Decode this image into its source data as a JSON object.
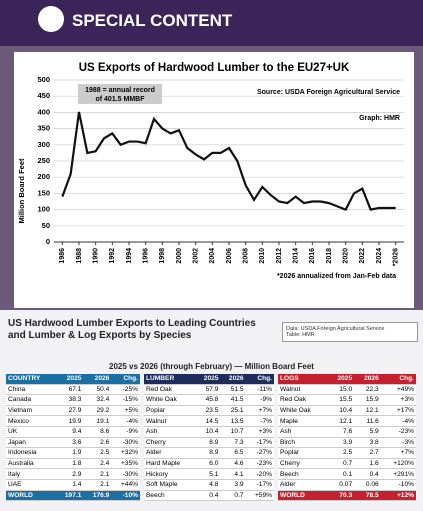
{
  "header": {
    "title": "SPECIAL CONTENT"
  },
  "chart_data": {
    "type": "line",
    "title": "US Exports of Hardwood Lumber to the EU27+UK",
    "annotation": "1988 = annual record\nof 401.5 MMBF",
    "source": "Source: USDA Foreign Agricultural Service",
    "credit": "Graph: HMR",
    "footnote": "*2026 annualized from Jan-Feb data",
    "y_label": "Million Board Feet",
    "x": [
      1986,
      1987,
      1988,
      1989,
      1990,
      1991,
      1992,
      1993,
      1994,
      1995,
      1996,
      1997,
      1998,
      1999,
      2000,
      2001,
      2002,
      2003,
      2004,
      2005,
      2006,
      2007,
      2008,
      2009,
      2010,
      2011,
      2012,
      2013,
      2014,
      2015,
      2016,
      2017,
      2018,
      2019,
      2020,
      2021,
      2022,
      2023,
      2024,
      2025,
      2026
    ],
    "series": [
      {
        "color": "#111111",
        "values": [
          140,
          210,
          401.5,
          275,
          280,
          320,
          335,
          300,
          310,
          310,
          305,
          380,
          350,
          335,
          345,
          290,
          270,
          255,
          275,
          275,
          290,
          250,
          175,
          130,
          170,
          145,
          125,
          120,
          140,
          120,
          125,
          125,
          120,
          110,
          100,
          150,
          165,
          100,
          105,
          105,
          105
        ]
      }
    ],
    "xlim": [
      1985,
      2027
    ],
    "xticks": [
      1986,
      1988,
      1990,
      1992,
      1994,
      1996,
      1998,
      2000,
      2002,
      2004,
      2006,
      2008,
      2010,
      2012,
      2014,
      2016,
      2018,
      2020,
      2022,
      2024,
      {
        "value": 2026,
        "label": "*2026"
      }
    ],
    "ylim": [
      0,
      500
    ],
    "yticks": [
      0,
      50,
      100,
      150,
      200,
      250,
      300,
      350,
      400,
      450,
      500
    ],
    "grid": true
  },
  "section": {
    "title": "US Hardwood Lumber Exports to Leading Countries\nand Lumber & Log Exports by Species",
    "note": "Data: USDA Foreign Agricultural Service\nTable: HMR",
    "subtitle": "2025 vs 2026 (through February) — Million Board Feet"
  },
  "tables": [
    {
      "color": "#1b6fa3",
      "header": [
        "COUNTRY",
        "2025",
        "2026",
        "Chg."
      ],
      "rows": [
        [
          "China",
          "67.1",
          "50.4",
          "-25%"
        ],
        [
          "Canada",
          "38.3",
          "32.4",
          "-15%"
        ],
        [
          "Vietnam",
          "27.9",
          "29.2",
          "+5%"
        ],
        [
          "Mexico",
          "19.9",
          "19.1",
          "-4%"
        ],
        [
          "UK",
          "9.4",
          "8.6",
          "-9%"
        ],
        [
          "Japan",
          "3.6",
          "2.6",
          "-30%"
        ],
        [
          "Indonesia",
          "1.9",
          "2.5",
          "+32%"
        ],
        [
          "Australia",
          "1.8",
          "2.4",
          "+35%"
        ],
        [
          "Italy",
          "2.9",
          "2.1",
          "-30%"
        ],
        [
          "UAE",
          "1.4",
          "2.1",
          "+44%"
        ],
        [
          "WORLD",
          "197.1",
          "176.9",
          "-10%"
        ]
      ]
    },
    {
      "color": "#1f2d5c",
      "header": [
        "LUMBER",
        "2025",
        "2026",
        "Chg."
      ],
      "rows": [
        [
          "Red Oak",
          "57.9",
          "51.5",
          "-11%"
        ],
        [
          "White Oak",
          "45.8",
          "41.5",
          "-9%"
        ],
        [
          "Poplar",
          "23.5",
          "25.1",
          "+7%"
        ],
        [
          "Walnut",
          "14.5",
          "13.5",
          "-7%"
        ],
        [
          "Ash",
          "10.4",
          "10.7",
          "+3%"
        ],
        [
          "Cherry",
          "8.9",
          "7.3",
          "-17%"
        ],
        [
          "Alder",
          "8.9",
          "6.5",
          "-27%"
        ],
        [
          "Hard Maple",
          "6.0",
          "4.6",
          "-23%"
        ],
        [
          "Hickory",
          "5.1",
          "4.1",
          "-20%"
        ],
        [
          "Soft Maple",
          "4.8",
          "3.9",
          "-17%"
        ],
        [
          "Beech",
          "0.4",
          "0.7",
          "+59%"
        ]
      ]
    },
    {
      "color": "#c62030",
      "header": [
        "LOGS",
        "2025",
        "2026",
        "Chg."
      ],
      "rows": [
        [
          "Walnut",
          "15.0",
          "22.3",
          "+49%"
        ],
        [
          "Red Oak",
          "15.5",
          "15.9",
          "+3%"
        ],
        [
          "White Oak",
          "10.4",
          "12.1",
          "+17%"
        ],
        [
          "Maple",
          "12.1",
          "11.6",
          "-4%"
        ],
        [
          "Ash",
          "7.6",
          "5.9",
          "-23%"
        ],
        [
          "Birch",
          "3.9",
          "3.8",
          "-3%"
        ],
        [
          "Poplar",
          "2.5",
          "2.7",
          "+7%"
        ],
        [
          "Cherry",
          "0.7",
          "1.6",
          "+120%"
        ],
        [
          "Beech",
          "0.1",
          "0.4",
          "+291%"
        ],
        [
          "Alder",
          "0.07",
          "0.06",
          "-10%"
        ],
        [
          "WORLD",
          "70.3",
          "78.5",
          "+12%"
        ]
      ]
    }
  ]
}
